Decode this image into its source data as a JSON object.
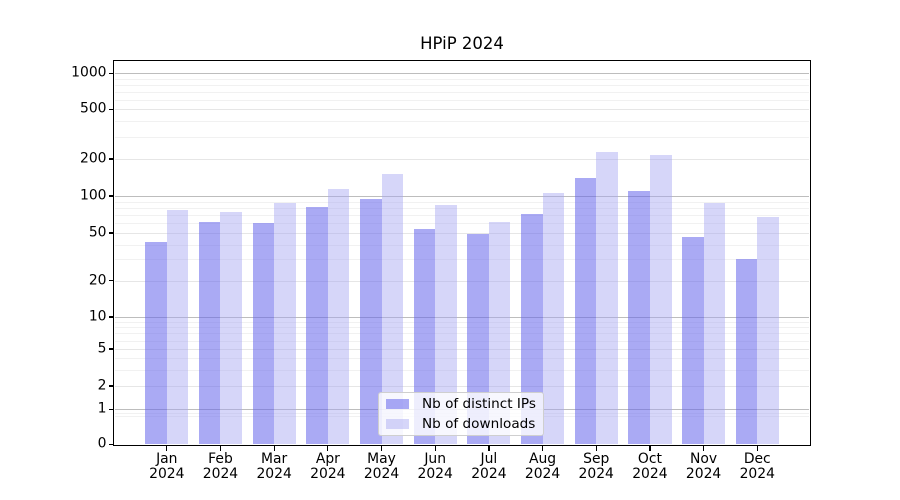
{
  "chart_data": {
    "type": "bar",
    "title": "HPiP 2024",
    "categories": [
      "Jan",
      "Feb",
      "Mar",
      "Apr",
      "May",
      "Jun",
      "Jul",
      "Aug",
      "Sep",
      "Oct",
      "Nov",
      "Dec"
    ],
    "year_label": "2024",
    "series": [
      {
        "name": "Nb of distinct IPs",
        "color": "rgba(100,100,235,0.55)",
        "values": [
          42,
          62,
          60,
          82,
          94,
          54,
          49,
          72,
          140,
          110,
          46,
          30
        ]
      },
      {
        "name": "Nb of downloads",
        "color": "rgba(165,165,242,0.45)",
        "values": [
          77,
          74,
          87,
          113,
          152,
          85,
          61,
          106,
          228,
          215,
          88,
          67
        ]
      }
    ],
    "ylabel": "",
    "xlabel": "",
    "yticks": [
      0,
      1,
      2,
      5,
      10,
      20,
      50,
      100,
      200,
      500,
      1000
    ],
    "ytick_labels": [
      "0",
      "1",
      "2",
      "5",
      "10",
      "20",
      "50",
      "100",
      "200",
      "500",
      "1000"
    ],
    "yscale": "log-like (1-2-5 ticks, 0 baseline)",
    "ylim": [
      0,
      1270
    ],
    "grid": "horizontal, major and minor",
    "legend_position": "lower center",
    "colors": {
      "grid_decade": "#bdbdbd",
      "grid_submajor": "#e6e6e6",
      "grid_minor": "#f1f1f1",
      "spine": "#000000",
      "background": "#ffffff"
    }
  }
}
